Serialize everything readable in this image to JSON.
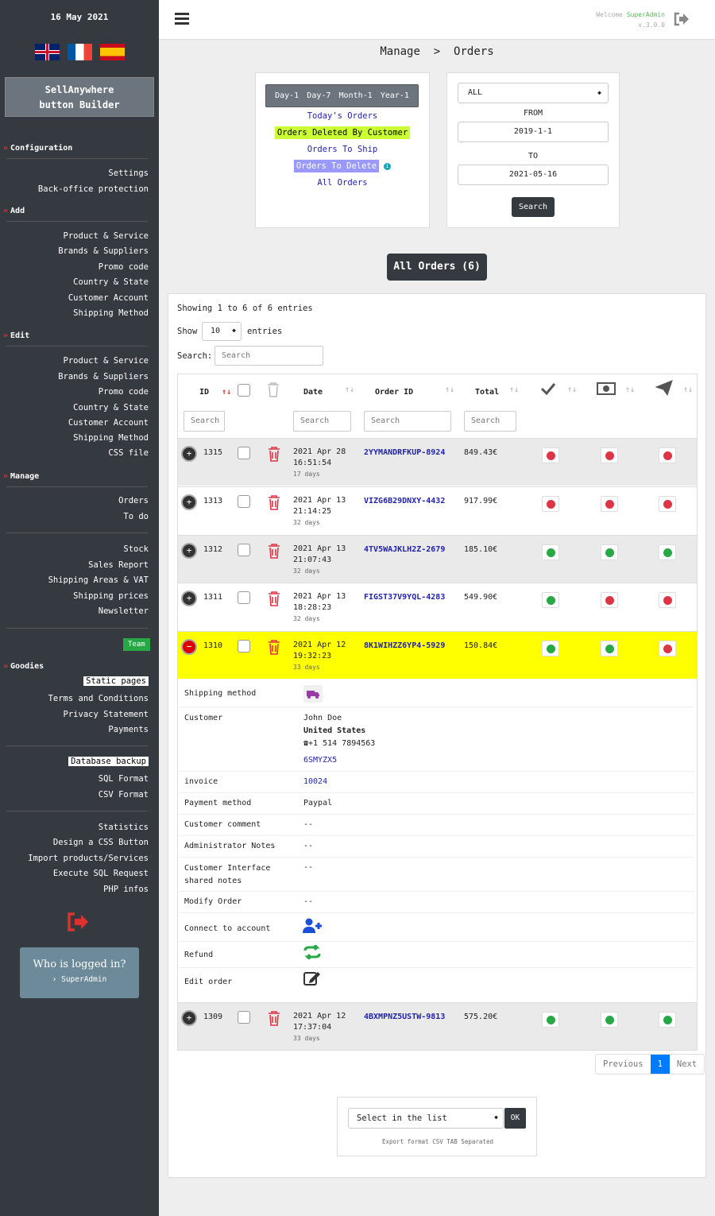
{
  "sidebar": {
    "date": "16 May 2021",
    "builder_title": "SellAnywhere\nbutton Builder",
    "configuration": {
      "title": "Configuration",
      "items": [
        "Settings",
        "Back-office protection"
      ]
    },
    "add": {
      "title": "Add",
      "items": [
        "Product & Service",
        "Brands & Suppliers",
        "Promo code",
        "Country & State",
        "Customer Account",
        "Shipping Method"
      ]
    },
    "edit": {
      "title": "Edit",
      "items": [
        "Product & Service",
        "Brands & Suppliers",
        "Promo code",
        "Country & State",
        "Customer Account",
        "Shipping Method",
        "CSS file"
      ]
    },
    "manage": {
      "title": "Manage",
      "items": [
        "Orders",
        "To do"
      ],
      "items2": [
        "Stock",
        "Sales Report",
        "Shipping Areas & VAT",
        "Shipping prices",
        "Newsletter"
      ],
      "team_badge": "Team"
    },
    "goodies": {
      "title": "Goodies",
      "static_pages": "Static pages",
      "items": [
        "Terms and Conditions",
        "Privacy Statement",
        "Payments"
      ],
      "database_backup": "Database backup",
      "db_items": [
        "SQL Format",
        "CSV Format"
      ],
      "tools": [
        "Statistics",
        "Design a CSS Button",
        "Import products/Services",
        "Execute SQL Request",
        "PHP infos"
      ]
    },
    "who": {
      "title": "Who is logged in?",
      "user": "› SuperAdmin"
    }
  },
  "header": {
    "welcome": "Welcome",
    "user": "SuperAdmin",
    "version": "v.3.0.0"
  },
  "breadcrumb": "Manage  >  Orders",
  "filters": {
    "periods": [
      "Day-1",
      "Day-7",
      "Month-1",
      "Year-1"
    ],
    "links": [
      "Today's Orders",
      "Orders Deleted By Customer",
      "Orders To Ship",
      "Orders To Delete",
      "All Orders"
    ],
    "select": "ALL",
    "from_label": "FROM",
    "from": "2019-1-1",
    "to_label": "TO",
    "to": "2021-05-16",
    "search": "Search"
  },
  "all_orders_button": "All Orders (6)",
  "table": {
    "showing": "Showing 1 to 6 of 6 entries",
    "show": "Show",
    "page_size": "10",
    "entries": "entries",
    "search_label": "Search:",
    "search_placeholder": "Search",
    "columns": [
      "ID",
      "Date",
      "Order ID",
      "Total"
    ],
    "column_search": "Search",
    "rows": [
      {
        "id": "1315",
        "date": "2021 Apr 28",
        "time": "16:51:54",
        "days": "17 days",
        "order_id": "2YYMANDRFKUP-8924",
        "total": "849.43€",
        "status": [
          "red",
          "red",
          "red"
        ]
      },
      {
        "id": "1313",
        "date": "2021 Apr 13",
        "time": "21:14:25",
        "days": "32 days",
        "order_id": "VIZG6B29DNXY-4432",
        "total": "917.99€",
        "status": [
          "red",
          "red",
          "red"
        ]
      },
      {
        "id": "1312",
        "date": "2021 Apr 13",
        "time": "21:07:43",
        "days": "32 days",
        "order_id": "4TV5WAJKLH2Z-2679",
        "total": "185.10€",
        "status": [
          "green",
          "green",
          "green"
        ]
      },
      {
        "id": "1311",
        "date": "2021 Apr 13",
        "time": "18:28:23",
        "days": "32 days",
        "order_id": "FIGST37V9YQL-4283",
        "total": "549.90€",
        "status": [
          "green",
          "red",
          "red"
        ]
      },
      {
        "id": "1310",
        "date": "2021 Apr 12",
        "time": "19:32:23",
        "days": "33 days",
        "order_id": "8K1WIHZZ6YP4-5929",
        "total": "150.84€",
        "status": [
          "green",
          "green",
          "red"
        ]
      },
      {
        "id": "1309",
        "date": "2021 Apr 12",
        "time": "17:37:04",
        "days": "33 days",
        "order_id": "4BXMPNZ5USTW-9813",
        "total": "575.20€",
        "status": [
          "green",
          "green",
          "green"
        ]
      }
    ],
    "details": {
      "shipping_method": "Shipping method",
      "customer": "Customer",
      "customer_name": "John Doe",
      "customer_country": "United States",
      "customer_phone": "+1 514 7894563",
      "customer_code": "6SMYZX5",
      "invoice": "invoice",
      "invoice_value": "10024",
      "payment_method": "Payment method",
      "payment_value": "Paypal",
      "customer_comment": "Customer comment",
      "customer_comment_value": "--",
      "admin_notes": "Administrator Notes",
      "admin_notes_value": "--",
      "shared_notes": "Customer Interface\nshared notes",
      "shared_notes_value": "--",
      "modify_order": "Modify Order",
      "modify_order_value": "--",
      "connect": "Connect to account",
      "refund": "Refund",
      "edit_order": "Edit order"
    },
    "pagination": {
      "previous": "Previous",
      "page": "1",
      "next": "Next"
    }
  },
  "export": {
    "select": "Select in the list",
    "ok": "OK",
    "note": "Export format CSV TAB Separated"
  },
  "colors": {
    "sidebar": "#343a40",
    "accent_red": "#dc3545",
    "accent_green": "#28a745",
    "highlight_row": "#ffff00"
  }
}
